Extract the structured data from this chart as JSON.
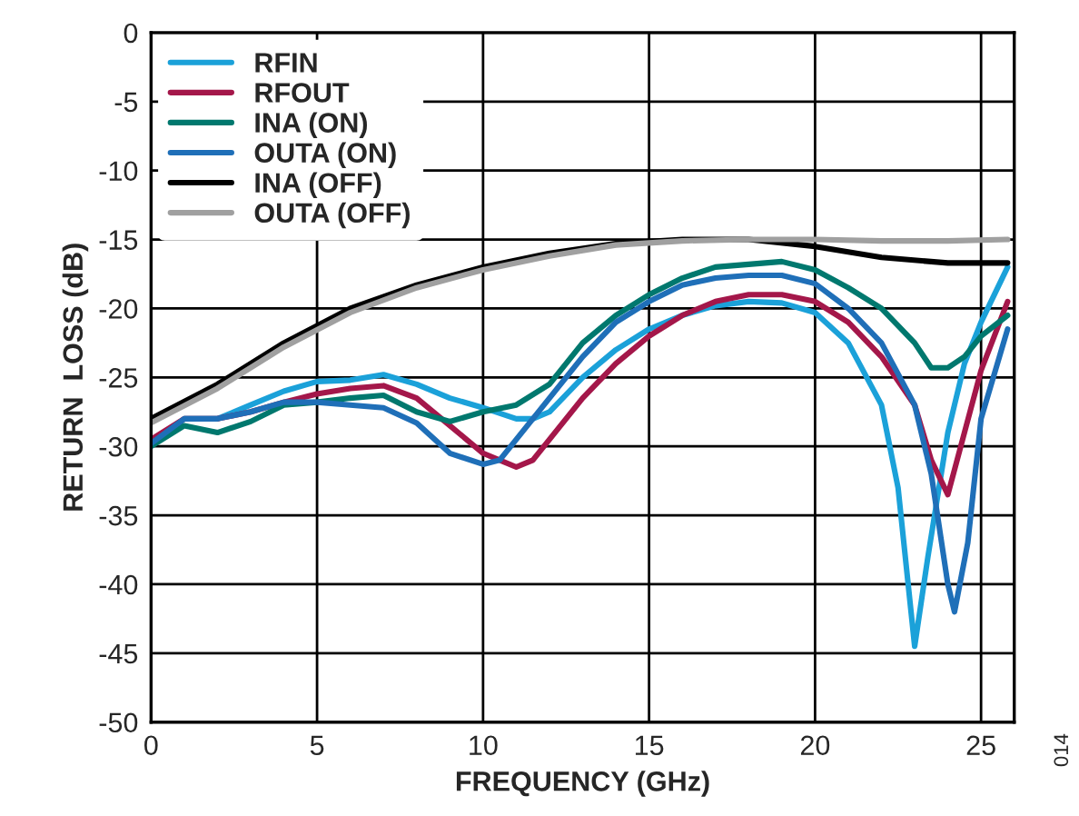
{
  "chart_data": {
    "type": "line",
    "xlabel": "FREQUENCY (GHz)",
    "ylabel": "RETURN  LOSS (dB)",
    "xlim": [
      0,
      26
    ],
    "xticks": [
      0,
      5,
      10,
      15,
      20,
      25
    ],
    "ylim": [
      -50,
      0
    ],
    "yticks": [
      -50,
      -45,
      -40,
      -35,
      -30,
      -25,
      -20,
      -15,
      -10,
      -5,
      0
    ],
    "grid": true,
    "legend": "top left",
    "line_style": "solid",
    "marker": "none",
    "annotations": [
      "014"
    ],
    "series": [
      {
        "name": "RFIN",
        "color": "#1ba1d9",
        "x": [
          0,
          1,
          2,
          3,
          4,
          5,
          6,
          7,
          8,
          9,
          10,
          11,
          11.5,
          12,
          13,
          14,
          15,
          16,
          17,
          18,
          19,
          20,
          21,
          22,
          22.5,
          23,
          23.4,
          24,
          24.5,
          25,
          25.8
        ],
        "values": [
          -30,
          -28,
          -28,
          -27,
          -26,
          -25.3,
          -25.2,
          -24.8,
          -25.5,
          -26.5,
          -27.2,
          -28,
          -28,
          -27.5,
          -25,
          -23,
          -21.5,
          -20.5,
          -19.8,
          -19.5,
          -19.6,
          -20.3,
          -22.5,
          -27,
          -33,
          -44.5,
          -38,
          -29,
          -24,
          -21,
          -17
        ]
      },
      {
        "name": "RFOUT",
        "color": "#a4174a",
        "x": [
          0,
          1,
          2,
          3,
          4,
          5,
          6,
          7,
          8,
          9,
          10,
          11,
          11.5,
          12,
          13,
          14,
          15,
          16,
          17,
          18,
          19,
          20,
          21,
          22,
          23,
          23.5,
          24,
          24.5,
          25,
          25.8
        ],
        "values": [
          -29.5,
          -28,
          -28,
          -27.5,
          -26.8,
          -26.2,
          -25.8,
          -25.6,
          -26.5,
          -28.5,
          -30.5,
          -31.5,
          -31,
          -29.5,
          -26.5,
          -24,
          -22,
          -20.5,
          -19.5,
          -19,
          -19,
          -19.5,
          -21,
          -23.5,
          -27,
          -31,
          -33.5,
          -29,
          -24.5,
          -19.5
        ]
      },
      {
        "name": "INA (ON)",
        "color": "#00786e",
        "x": [
          0,
          1,
          2,
          3,
          4,
          5,
          6,
          7,
          8,
          9,
          10,
          11,
          12,
          13,
          14,
          15,
          16,
          17,
          18,
          19,
          20,
          21,
          22,
          23,
          23.5,
          24,
          24.5,
          25,
          25.8
        ],
        "values": [
          -30,
          -28.5,
          -29,
          -28.2,
          -27,
          -26.8,
          -26.5,
          -26.3,
          -27.5,
          -28.2,
          -27.5,
          -27,
          -25.5,
          -22.5,
          -20.5,
          -19,
          -17.8,
          -17,
          -16.8,
          -16.6,
          -17.2,
          -18.5,
          -20,
          -22.5,
          -24.3,
          -24.3,
          -23.5,
          -22,
          -20.5
        ]
      },
      {
        "name": "OUTA (ON)",
        "color": "#1f6fb8",
        "x": [
          0,
          1,
          2,
          3,
          4,
          5,
          6,
          7,
          8,
          9,
          10,
          10.5,
          11,
          12,
          13,
          14,
          15,
          16,
          17,
          18,
          19,
          20,
          21,
          22,
          23,
          23.5,
          24,
          24.2,
          24.6,
          25,
          25.8
        ],
        "values": [
          -29.8,
          -28,
          -28,
          -27.5,
          -26.8,
          -26.8,
          -27,
          -27.2,
          -28.3,
          -30.5,
          -31.3,
          -31,
          -29.5,
          -26.5,
          -23.5,
          -21,
          -19.5,
          -18.3,
          -17.8,
          -17.6,
          -17.6,
          -18.2,
          -20,
          -22.5,
          -27,
          -32,
          -40,
          -42,
          -37,
          -28,
          -21.5
        ]
      },
      {
        "name": "INA (OFF)",
        "color": "#000000",
        "x": [
          0,
          2,
          4,
          6,
          8,
          10,
          12,
          14,
          16,
          18,
          20,
          22,
          24,
          25.8
        ],
        "values": [
          -28,
          -25.5,
          -22.5,
          -20,
          -18.3,
          -17,
          -16,
          -15.3,
          -15,
          -15,
          -15.5,
          -16.3,
          -16.7,
          -16.7
        ]
      },
      {
        "name": "OUTA (OFF)",
        "color": "#a0a0a0",
        "x": [
          0,
          2,
          4,
          6,
          8,
          10,
          12,
          14,
          16,
          18,
          20,
          22,
          24,
          25.8
        ],
        "values": [
          -28.3,
          -25.8,
          -22.8,
          -20.3,
          -18.5,
          -17.2,
          -16.2,
          -15.4,
          -15.1,
          -15,
          -15,
          -15.1,
          -15.1,
          -15
        ]
      }
    ]
  }
}
